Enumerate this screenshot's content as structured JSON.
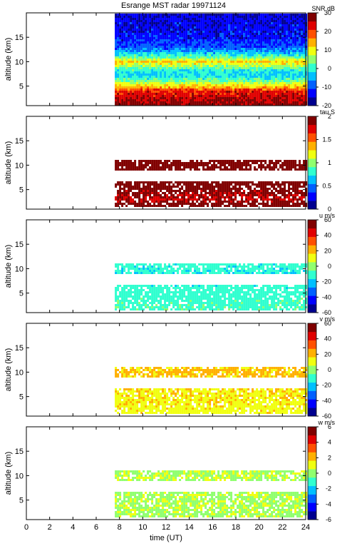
{
  "chart_data": {
    "type": "heatmap",
    "title": "Esrange MST radar 19971124",
    "xlabel": "time (UT)",
    "xlim": [
      0,
      24
    ],
    "x_ticks": [
      0,
      2,
      4,
      6,
      8,
      10,
      12,
      14,
      16,
      18,
      20,
      22,
      24
    ],
    "data_start_ut": 7.6,
    "panels": [
      {
        "id": "snr",
        "ylabel": "altitude (km)",
        "ylim": [
          1,
          20
        ],
        "y_ticks": [
          5,
          10,
          15
        ],
        "colorbar_label": "SNR dB",
        "clim": [
          -20,
          30
        ],
        "cbar_ticks": [
          -20,
          -10,
          0,
          10,
          20,
          30
        ],
        "profile": [
          {
            "alt": 1,
            "value": 28
          },
          {
            "alt": 2,
            "value": 26
          },
          {
            "alt": 3,
            "value": 24
          },
          {
            "alt": 4,
            "value": 22
          },
          {
            "alt": 5,
            "value": 12
          },
          {
            "alt": 6,
            "value": 4
          },
          {
            "alt": 7,
            "value": -2
          },
          {
            "alt": 8,
            "value": -2
          },
          {
            "alt": 9,
            "value": 5
          },
          {
            "alt": 10,
            "value": 12
          },
          {
            "alt": 11,
            "value": 2
          },
          {
            "alt": 12,
            "value": -5
          },
          {
            "alt": 13,
            "value": -10
          },
          {
            "alt": 15,
            "value": -13
          },
          {
            "alt": 17,
            "value": -14
          },
          {
            "alt": 20,
            "value": -15
          }
        ]
      },
      {
        "id": "tau",
        "ylabel": "altitude (km)",
        "ylim": [
          1,
          20
        ],
        "y_ticks": [
          5,
          10,
          15
        ],
        "colorbar_label": "tau S",
        "clim": [
          0,
          2
        ],
        "cbar_ticks": [
          0,
          0.5,
          1,
          1.5,
          2
        ],
        "profile": [
          {
            "alt": 1.5,
            "value": 2.0
          },
          {
            "alt": 3,
            "value": 1.8
          },
          {
            "alt": 5,
            "value": 1.9
          },
          {
            "alt": 6.5,
            "value": 2.0
          },
          {
            "alt": 9,
            "value": 2.0
          },
          {
            "alt": 10,
            "value": 2.0
          },
          {
            "alt": 11,
            "value": 2.0
          }
        ]
      },
      {
        "id": "u",
        "ylabel": "altitude (km)",
        "ylim": [
          1,
          20
        ],
        "y_ticks": [
          5,
          10,
          15
        ],
        "colorbar_label": "u m/s",
        "clim": [
          -60,
          60
        ],
        "cbar_ticks": [
          -60,
          -40,
          -20,
          0,
          20,
          40,
          60
        ],
        "profile": [
          {
            "alt": 1.5,
            "value": -8
          },
          {
            "alt": 4,
            "value": -10
          },
          {
            "alt": 6.5,
            "value": -12
          },
          {
            "alt": 9,
            "value": -14
          },
          {
            "alt": 10,
            "value": -13
          },
          {
            "alt": 11,
            "value": -12
          }
        ]
      },
      {
        "id": "v",
        "ylabel": "altitude (km)",
        "ylim": [
          1,
          20
        ],
        "y_ticks": [
          5,
          10,
          15
        ],
        "colorbar_label": "v m/s",
        "clim": [
          -60,
          60
        ],
        "cbar_ticks": [
          -60,
          -40,
          -20,
          0,
          20,
          40,
          60
        ],
        "profile": [
          {
            "alt": 1.5,
            "value": 12
          },
          {
            "alt": 4,
            "value": 14
          },
          {
            "alt": 6.5,
            "value": 15
          },
          {
            "alt": 9,
            "value": 18
          },
          {
            "alt": 10,
            "value": 19
          },
          {
            "alt": 11,
            "value": 18
          }
        ]
      },
      {
        "id": "w",
        "ylabel": "altitude (km)",
        "ylim": [
          1,
          20
        ],
        "y_ticks": [
          5,
          10,
          15
        ],
        "colorbar_label": "w m/s",
        "clim": [
          -6,
          6
        ],
        "cbar_ticks": [
          -6,
          -4,
          -2,
          0,
          2,
          4,
          6
        ],
        "profile": [
          {
            "alt": 1.5,
            "value": 0.3
          },
          {
            "alt": 4,
            "value": 0.4
          },
          {
            "alt": 6.5,
            "value": 0.3
          },
          {
            "alt": 9,
            "value": 0.4
          },
          {
            "alt": 10,
            "value": 0.5
          },
          {
            "alt": 11,
            "value": 0.4
          }
        ]
      }
    ],
    "colormap": [
      "#00008f",
      "#0000ff",
      "#0060ff",
      "#00c0ff",
      "#30ffcf",
      "#90ff6f",
      "#f0ff10",
      "#ffb000",
      "#ff5000",
      "#e00000",
      "#800000"
    ]
  }
}
